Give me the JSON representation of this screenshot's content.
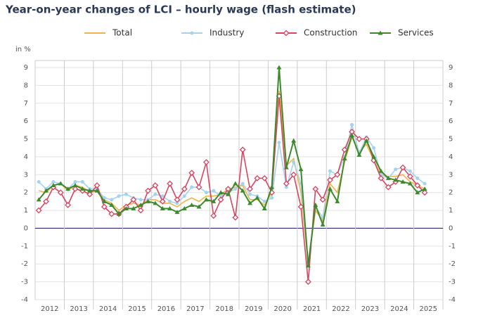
{
  "chart_data": {
    "type": "line",
    "title": "Year-on-year changes of LCI – hourly wage (flash estimate)",
    "y_unit": "in %",
    "categories": [
      "2012",
      null,
      null,
      null,
      "2013",
      null,
      null,
      null,
      "2014",
      null,
      null,
      null,
      "2015",
      null,
      null,
      null,
      "2016",
      null,
      null,
      null,
      "2017",
      null,
      null,
      null,
      "2018",
      null,
      null,
      null,
      "2019",
      null,
      null,
      null,
      "2020",
      null,
      null,
      null,
      "2021",
      null,
      null,
      null,
      "2022",
      null,
      null,
      null,
      "2023",
      null,
      null,
      null,
      "2024",
      null,
      null,
      null,
      "2025",
      null,
      null,
      null
    ],
    "series": [
      {
        "name": "Total",
        "color": "#f0b44c",
        "marker": "none",
        "values": [
          2.1,
          2.0,
          2.4,
          2.5,
          2.1,
          2.4,
          2.3,
          2.0,
          2.1,
          1.6,
          1.4,
          1.0,
          1.3,
          1.4,
          1.3,
          1.6,
          1.6,
          1.4,
          1.4,
          1.2,
          1.5,
          1.7,
          1.5,
          1.8,
          1.8,
          1.9,
          2.2,
          2.3,
          2.4,
          1.6,
          1.6,
          1.3,
          2.0,
          7.7,
          3.5,
          3.9,
          2.0,
          -2.0,
          1.0,
          0.4,
          2.5,
          2.0,
          3.7,
          5.1,
          4.3,
          4.7,
          3.8,
          3.0,
          2.9,
          2.9,
          3.0,
          2.6,
          2.4,
          2.2,
          null,
          null
        ]
      },
      {
        "name": "Industry",
        "color": "#a5d3ef",
        "marker": "circle",
        "values": [
          2.6,
          2.2,
          2.6,
          2.5,
          2.2,
          2.6,
          2.6,
          2.2,
          2.2,
          1.7,
          1.6,
          1.8,
          1.9,
          1.7,
          1.6,
          1.6,
          1.9,
          1.8,
          1.5,
          1.4,
          1.8,
          2.3,
          2.3,
          2.0,
          2.1,
          1.8,
          2.0,
          2.2,
          2.5,
          1.9,
          1.8,
          1.5,
          1.7,
          4.8,
          2.3,
          3.7,
          2.5,
          -1.9,
          1.2,
          0.6,
          3.2,
          3.0,
          4.0,
          5.8,
          4.2,
          5.1,
          4.5,
          3.0,
          2.8,
          3.3,
          3.4,
          3.2,
          2.8,
          2.5,
          null,
          null
        ]
      },
      {
        "name": "Construction",
        "color": "#d9455f",
        "marker": "diamond",
        "values": [
          1.0,
          1.5,
          2.3,
          2.0,
          1.3,
          2.2,
          2.1,
          1.9,
          2.4,
          1.2,
          0.8,
          0.8,
          1.2,
          1.6,
          1.0,
          2.1,
          2.4,
          1.5,
          2.5,
          1.6,
          2.2,
          3.1,
          2.3,
          3.7,
          0.7,
          1.6,
          2.2,
          0.6,
          4.4,
          2.2,
          2.8,
          2.8,
          2.0,
          7.4,
          2.5,
          3.0,
          1.2,
          -3.0,
          2.2,
          1.6,
          2.7,
          3.0,
          4.4,
          5.4,
          5.0,
          5.0,
          3.8,
          2.8,
          2.3,
          2.6,
          3.4,
          2.9,
          2.4,
          2.0,
          null,
          null
        ]
      },
      {
        "name": "Services",
        "color": "#3d8a2d",
        "marker": "triangle",
        "values": [
          1.6,
          2.1,
          2.4,
          2.5,
          2.2,
          2.4,
          2.2,
          2.1,
          2.1,
          1.5,
          1.3,
          0.8,
          1.1,
          1.1,
          1.3,
          1.5,
          1.4,
          1.1,
          1.1,
          0.9,
          1.1,
          1.3,
          1.2,
          1.6,
          1.5,
          2.0,
          1.9,
          2.5,
          2.1,
          1.4,
          1.7,
          1.1,
          2.3,
          9.0,
          3.4,
          4.9,
          3.3,
          -2.1,
          1.3,
          0.2,
          2.2,
          1.5,
          3.9,
          5.2,
          4.1,
          4.9,
          4.0,
          3.2,
          2.8,
          2.7,
          2.6,
          2.5,
          2.0,
          2.2,
          null,
          null
        ]
      }
    ],
    "ylim": [
      -4,
      9
    ],
    "yticks": [
      -4,
      -3,
      -2,
      -1,
      0,
      1,
      2,
      3,
      4,
      5,
      6,
      7,
      8,
      9
    ],
    "grid": true
  }
}
